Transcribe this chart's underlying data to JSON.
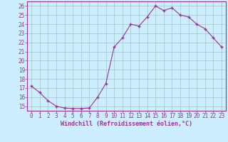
{
  "x": [
    0,
    1,
    2,
    3,
    4,
    5,
    6,
    7,
    8,
    9,
    10,
    11,
    12,
    13,
    14,
    15,
    16,
    17,
    18,
    19,
    20,
    21,
    22,
    23
  ],
  "y": [
    17.2,
    16.5,
    15.6,
    15.0,
    14.8,
    14.75,
    14.75,
    14.8,
    16.0,
    17.5,
    21.5,
    22.5,
    24.0,
    23.8,
    24.8,
    26.0,
    25.5,
    25.8,
    25.0,
    24.8,
    24.0,
    23.5,
    22.5,
    21.5
  ],
  "line_color": "#993399",
  "marker": "+",
  "bg_color": "#cceeff",
  "grid_color": "#aacccc",
  "ylabel_ticks": [
    15,
    16,
    17,
    18,
    19,
    20,
    21,
    22,
    23,
    24,
    25,
    26
  ],
  "xlabel_ticks": [
    0,
    1,
    2,
    3,
    4,
    5,
    6,
    7,
    8,
    9,
    10,
    11,
    12,
    13,
    14,
    15,
    16,
    17,
    18,
    19,
    20,
    21,
    22,
    23
  ],
  "xlim": [
    -0.5,
    23.5
  ],
  "ylim": [
    14.5,
    26.5
  ],
  "tick_label_color": "#993399",
  "axis_label_color": "#993399",
  "spine_color": "#993399",
  "xlabel": "Windchill (Refroidissement éolien,°C)",
  "font_family": "monospace",
  "tick_fontsize": 5.5,
  "xlabel_fontsize": 6.0
}
